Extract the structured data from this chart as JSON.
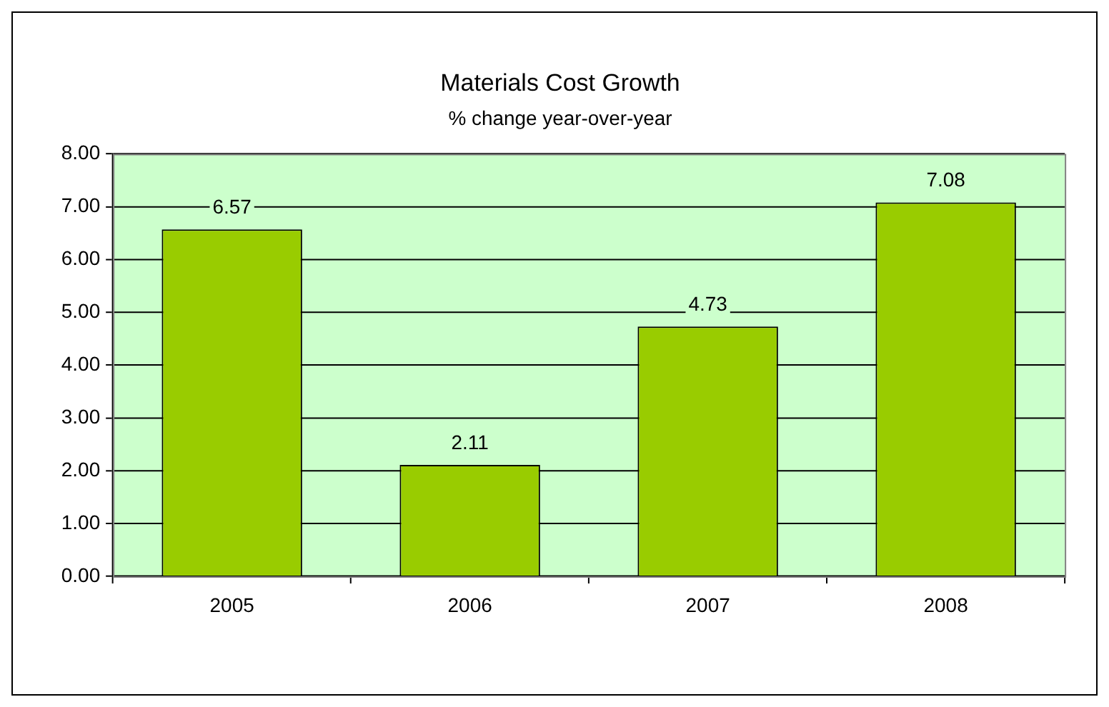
{
  "chart_data": {
    "type": "bar",
    "title": "Materials Cost Growth",
    "subtitle": "% change year-over-year",
    "categories": [
      "2005",
      "2006",
      "2007",
      "2008"
    ],
    "values": [
      6.57,
      2.11,
      4.73,
      7.08
    ],
    "color": "#99cc00",
    "ylim": [
      0,
      8
    ],
    "yticks": [
      {
        "value": 0,
        "label": "0.00"
      },
      {
        "value": 1,
        "label": "1.00"
      },
      {
        "value": 2,
        "label": "2.00"
      },
      {
        "value": 3,
        "label": "3.00"
      },
      {
        "value": 4,
        "label": "4.00"
      },
      {
        "value": 5,
        "label": "5.00"
      },
      {
        "value": 6,
        "label": "6.00"
      },
      {
        "value": 7,
        "label": "7.00"
      },
      {
        "value": 8,
        "label": "8.00"
      }
    ],
    "grid": "y",
    "legend": false,
    "data_labels": true
  }
}
